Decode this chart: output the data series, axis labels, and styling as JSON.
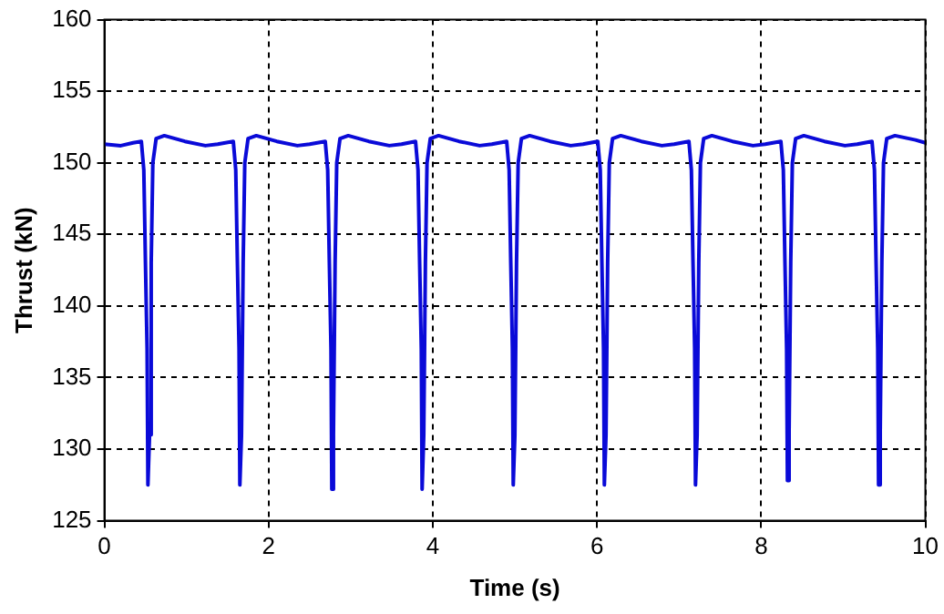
{
  "chart_data": {
    "type": "line",
    "xlabel": "Time (s)",
    "ylabel": "Thrust (kN)",
    "xlim": [
      0,
      10
    ],
    "ylim": [
      125,
      160
    ],
    "xticks": [
      0,
      2,
      4,
      6,
      8,
      10
    ],
    "yticks": [
      125,
      130,
      135,
      140,
      145,
      150,
      155,
      160
    ],
    "grid": true,
    "legend": false,
    "marker": "none",
    "line_style": "solid",
    "series": [
      {
        "color": "#0a0ad8",
        "x": [
          0,
          0.2,
          0.35,
          0.45,
          0.48,
          0.5,
          0.52,
          0.53,
          0.55,
          0.57,
          0.59,
          0.63,
          0.73,
          0.98,
          1.23,
          1.38,
          1.57,
          1.6,
          1.62,
          1.64,
          1.65,
          1.67,
          1.69,
          1.71,
          1.75,
          1.85,
          2.1,
          2.35,
          2.5,
          2.69,
          2.72,
          2.74,
          2.76,
          2.77,
          2.79,
          2.81,
          2.83,
          2.87,
          2.97,
          3.22,
          3.47,
          3.62,
          3.79,
          3.82,
          3.84,
          3.86,
          3.87,
          3.89,
          3.91,
          3.93,
          3.97,
          4.07,
          4.32,
          4.57,
          4.72,
          4.9,
          4.93,
          4.95,
          4.97,
          4.98,
          5.0,
          5.02,
          5.04,
          5.08,
          5.18,
          5.43,
          5.68,
          5.83,
          6.01,
          6.04,
          6.06,
          6.08,
          6.09,
          6.11,
          6.13,
          6.15,
          6.19,
          6.29,
          6.54,
          6.79,
          6.94,
          7.12,
          7.15,
          7.17,
          7.19,
          7.2,
          7.22,
          7.24,
          7.26,
          7.3,
          7.4,
          7.65,
          7.9,
          8.05,
          8.24,
          8.27,
          8.29,
          8.31,
          8.32,
          8.34,
          8.36,
          8.38,
          8.42,
          8.52,
          8.77,
          9.02,
          9.17,
          9.35,
          9.38,
          9.4,
          9.42,
          9.43,
          9.45,
          9.47,
          9.49,
          9.53,
          9.63,
          9.88,
          10
        ],
        "values": [
          151.3,
          151.2,
          151.4,
          151.5,
          149.5,
          143,
          137,
          127.5,
          131,
          143,
          150,
          151.7,
          151.9,
          151.5,
          151.2,
          151.3,
          151.5,
          149.5,
          143,
          137,
          127.5,
          131,
          143,
          150,
          151.7,
          151.9,
          151.5,
          151.2,
          151.3,
          151.5,
          149.5,
          143,
          137,
          127.2,
          131,
          143,
          150,
          151.7,
          151.9,
          151.5,
          151.2,
          151.3,
          151.5,
          149.5,
          143,
          137,
          127.2,
          131,
          143,
          150,
          151.7,
          151.9,
          151.5,
          151.2,
          151.3,
          151.5,
          149.5,
          143,
          137,
          127.5,
          131,
          143,
          150,
          151.7,
          151.9,
          151.5,
          151.2,
          151.3,
          151.5,
          149.5,
          143,
          137,
          127.5,
          131,
          143,
          150,
          151.7,
          151.9,
          151.5,
          151.2,
          151.3,
          151.5,
          149.5,
          143,
          137,
          127.5,
          131,
          143,
          150,
          151.7,
          151.9,
          151.5,
          151.2,
          151.3,
          151.5,
          149.5,
          143,
          137,
          127.8,
          131,
          143,
          150,
          151.7,
          151.9,
          151.5,
          151.2,
          151.3,
          151.5,
          149.5,
          143,
          137,
          127.5,
          131,
          143,
          150,
          151.7,
          151.9,
          151.6,
          151.4
        ]
      }
    ]
  }
}
